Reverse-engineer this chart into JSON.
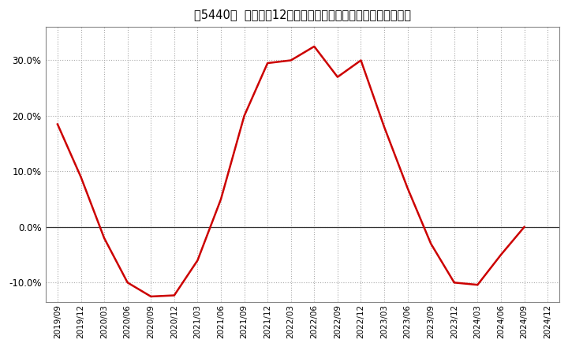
{
  "title": "［5440］  売上高の12か月移動合計の対前年同期増減率の推移",
  "line_color": "#cc0000",
  "bg_color": "#ffffff",
  "plot_bg_color": "#ffffff",
  "grid_color": "#aaaaaa",
  "zero_line_color": "#333333",
  "ylim": [
    -0.135,
    0.36
  ],
  "yticks": [
    -0.1,
    0.0,
    0.1,
    0.2,
    0.3
  ],
  "x_labels": [
    "2019/09",
    "2019/12",
    "2020/03",
    "2020/06",
    "2020/09",
    "2020/12",
    "2021/03",
    "2021/06",
    "2021/09",
    "2021/12",
    "2022/03",
    "2022/06",
    "2022/09",
    "2022/12",
    "2023/03",
    "2023/06",
    "2023/09",
    "2023/12",
    "2024/03",
    "2024/06",
    "2024/09",
    "2024/12"
  ],
  "x_values": [
    0,
    1,
    2,
    3,
    4,
    5,
    6,
    7,
    8,
    9,
    10,
    11,
    12,
    13,
    14,
    15,
    16,
    17,
    18,
    19,
    20,
    21
  ],
  "y_values": [
    0.185,
    0.09,
    -0.02,
    -0.1,
    -0.125,
    -0.123,
    -0.06,
    0.05,
    0.2,
    0.295,
    0.3,
    0.325,
    0.27,
    0.3,
    0.18,
    0.07,
    -0.03,
    -0.1,
    -0.104,
    -0.05,
    0.0,
    null
  ]
}
